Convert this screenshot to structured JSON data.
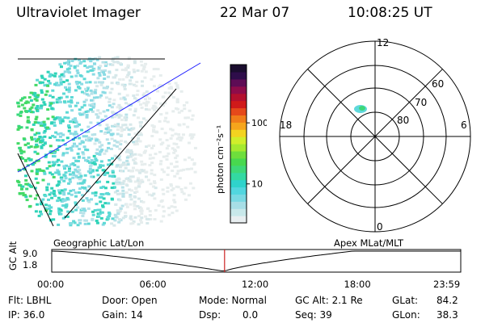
{
  "header": {
    "title": "Ultraviolet Imager",
    "date": "22 Mar 07",
    "time": "10:08:25 UT"
  },
  "colorbar": {
    "unit_label": "photon cm⁻²s⁻¹",
    "tick_labels": [
      "100",
      "10"
    ],
    "tick_values": [
      100,
      10
    ],
    "range": [
      2.3,
      900
    ],
    "scale": "log",
    "colors": [
      "#e8eef0",
      "#c8e8ea",
      "#a7dee6",
      "#7ad9e3",
      "#52d6df",
      "#2fd3cc",
      "#33d9a2",
      "#3ed878",
      "#48d84f",
      "#6ede3c",
      "#a5e92f",
      "#d0ee2b",
      "#f3d320",
      "#f6a51c",
      "#f07d1a",
      "#e5491a",
      "#d01a1a",
      "#b3102e",
      "#8e0c4a",
      "#5e0c55",
      "#2e0d4a",
      "#1a0d2e"
    ]
  },
  "polar": {
    "hour_labels": [
      "12",
      "18",
      "6",
      "0"
    ],
    "lat_labels": [
      "60",
      "70",
      "80"
    ]
  },
  "timeline": {
    "left_label": "Geographic Lat/Lon",
    "right_label": "Apex  MLat/MLT",
    "axis_label": "GC Alt",
    "y_ticks": [
      "9.0",
      "1.8"
    ],
    "x_ticks": [
      "00:00",
      "06:00",
      "12:00",
      "18:00",
      "23:59"
    ],
    "current_time_hours": 10.14
  },
  "footer": {
    "filter": "Flt: LBHL",
    "ip": "IP: 36.0",
    "door": "Door: Open",
    "gain": "Gain: 14",
    "mode": "Mode: Normal",
    "dsp_label": "Dsp:",
    "dsp_value": "0.0",
    "gc_alt": "GC Alt: 2.1 Re",
    "seq": "Seq: 39",
    "glat": "GLat:",
    "glat_value": "84.2",
    "glon": "GLon:",
    "glon_value": "38.3"
  }
}
